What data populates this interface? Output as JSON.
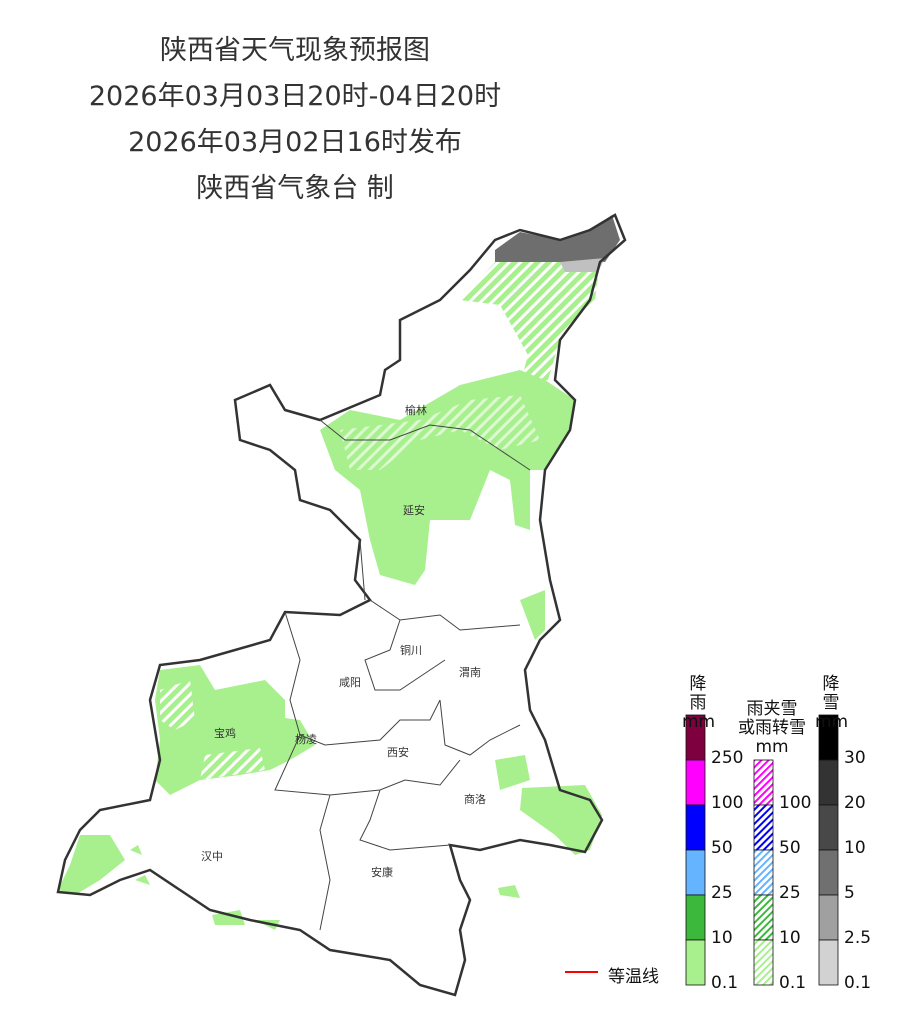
{
  "header": {
    "title": "陕西省天气现象预报图",
    "period": "2026年03月03日20时-04日20时",
    "issued": "2026年03月02日16时发布",
    "agency": "陕西省气象台 制"
  },
  "map": {
    "cities": [
      "榆林",
      "延安",
      "铜川",
      "咸阳",
      "渭南",
      "宝鸡",
      "杨凌",
      "西安",
      "商洛",
      "汉中",
      "安康"
    ],
    "colors": {
      "light_rain": "#a8f08e",
      "snow_light": "#c8c8c8",
      "snow_dark": "#6e6e6e",
      "border": "#333333"
    }
  },
  "legend": {
    "rain": {
      "title": "降雨",
      "unit": "mm",
      "colors": [
        "#7f003f",
        "#ff00ff",
        "#0000ff",
        "#64b4ff",
        "#3cb93c",
        "#a8f08e"
      ],
      "labels": [
        "250",
        "100",
        "50",
        "25",
        "10",
        "0.1"
      ]
    },
    "mixed": {
      "title_line1": "雨夹雪",
      "title_line2": "或雨转雪",
      "unit": "mm",
      "colors": [
        "#ff00ff",
        "#0000ff",
        "#64b4ff",
        "#3cb93c",
        "#a8f08e"
      ],
      "labels": [
        "100",
        "50",
        "25",
        "10",
        "0.1"
      ]
    },
    "snow": {
      "title": "降雪",
      "unit": "mm",
      "colors": [
        "#000000",
        "#333333",
        "#484848",
        "#707070",
        "#a0a0a0",
        "#d2d2d2"
      ],
      "labels": [
        "30",
        "20",
        "10",
        "5",
        "2.5",
        "0.1"
      ]
    },
    "isotherm": {
      "label": "等温线",
      "color": "#ff0000"
    }
  }
}
